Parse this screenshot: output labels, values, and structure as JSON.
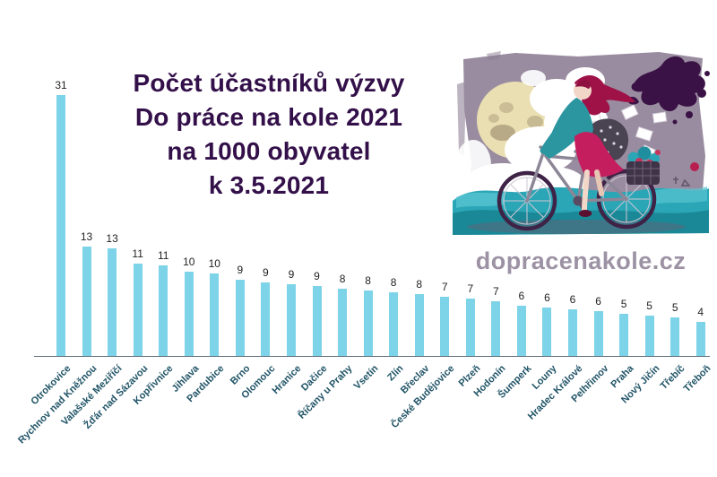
{
  "title": {
    "lines": [
      "Počet účastníků výzvy",
      "Do práce na kole 2021",
      "na 1000 obyvatel",
      "k 3.5.2021"
    ]
  },
  "branding": {
    "website": "dopracenakole.cz"
  },
  "illustration": {
    "name": "cyclist-illustration",
    "description": "watercolor drawing of a woman with flowing dark-red hair in a teal jacket and magenta skirt riding a bicycle with a flower basket; pale moon, white clouds, teal waves, dark ink splashes and flying papers on a mauve background"
  },
  "chart_data": {
    "type": "bar",
    "title": "Počet účastníků výzvy Do práce na kole 2021 na 1000 obyvatel k 3.5.2021",
    "xlabel": "",
    "ylabel": "",
    "ylim": [
      0,
      32
    ],
    "grid": false,
    "legend_position": "none",
    "categories": [
      "Otrokovice",
      "Rychnov nad Kněžnou",
      "Valašské Meziříčí",
      "Žďár nad Sázavou",
      "Kopřivnice",
      "Jihlava",
      "Pardubice",
      "Brno",
      "Olomouc",
      "Hranice",
      "Dačice",
      "Říčany u Prahy",
      "Vsetín",
      "Zlín",
      "Břeclav",
      "České Budějovice",
      "Plzeň",
      "Hodonín",
      "Šumperk",
      "Louny",
      "Hradec Králové",
      "Pelhřimov",
      "Praha",
      "Nový Jičín",
      "Třebíč",
      "Třeboň"
    ],
    "values": [
      31,
      13,
      13,
      11,
      11,
      10,
      10,
      9,
      9,
      9,
      9,
      8,
      8,
      8,
      8,
      7,
      7,
      7,
      6,
      6,
      6,
      6,
      5,
      5,
      5,
      4
    ],
    "bar_color": "#7dd3e8",
    "value_label_color": "#1f1f1f",
    "category_label_color": "#1f5366",
    "title_color": "#331049",
    "axis_line_color": "#5f7280"
  }
}
